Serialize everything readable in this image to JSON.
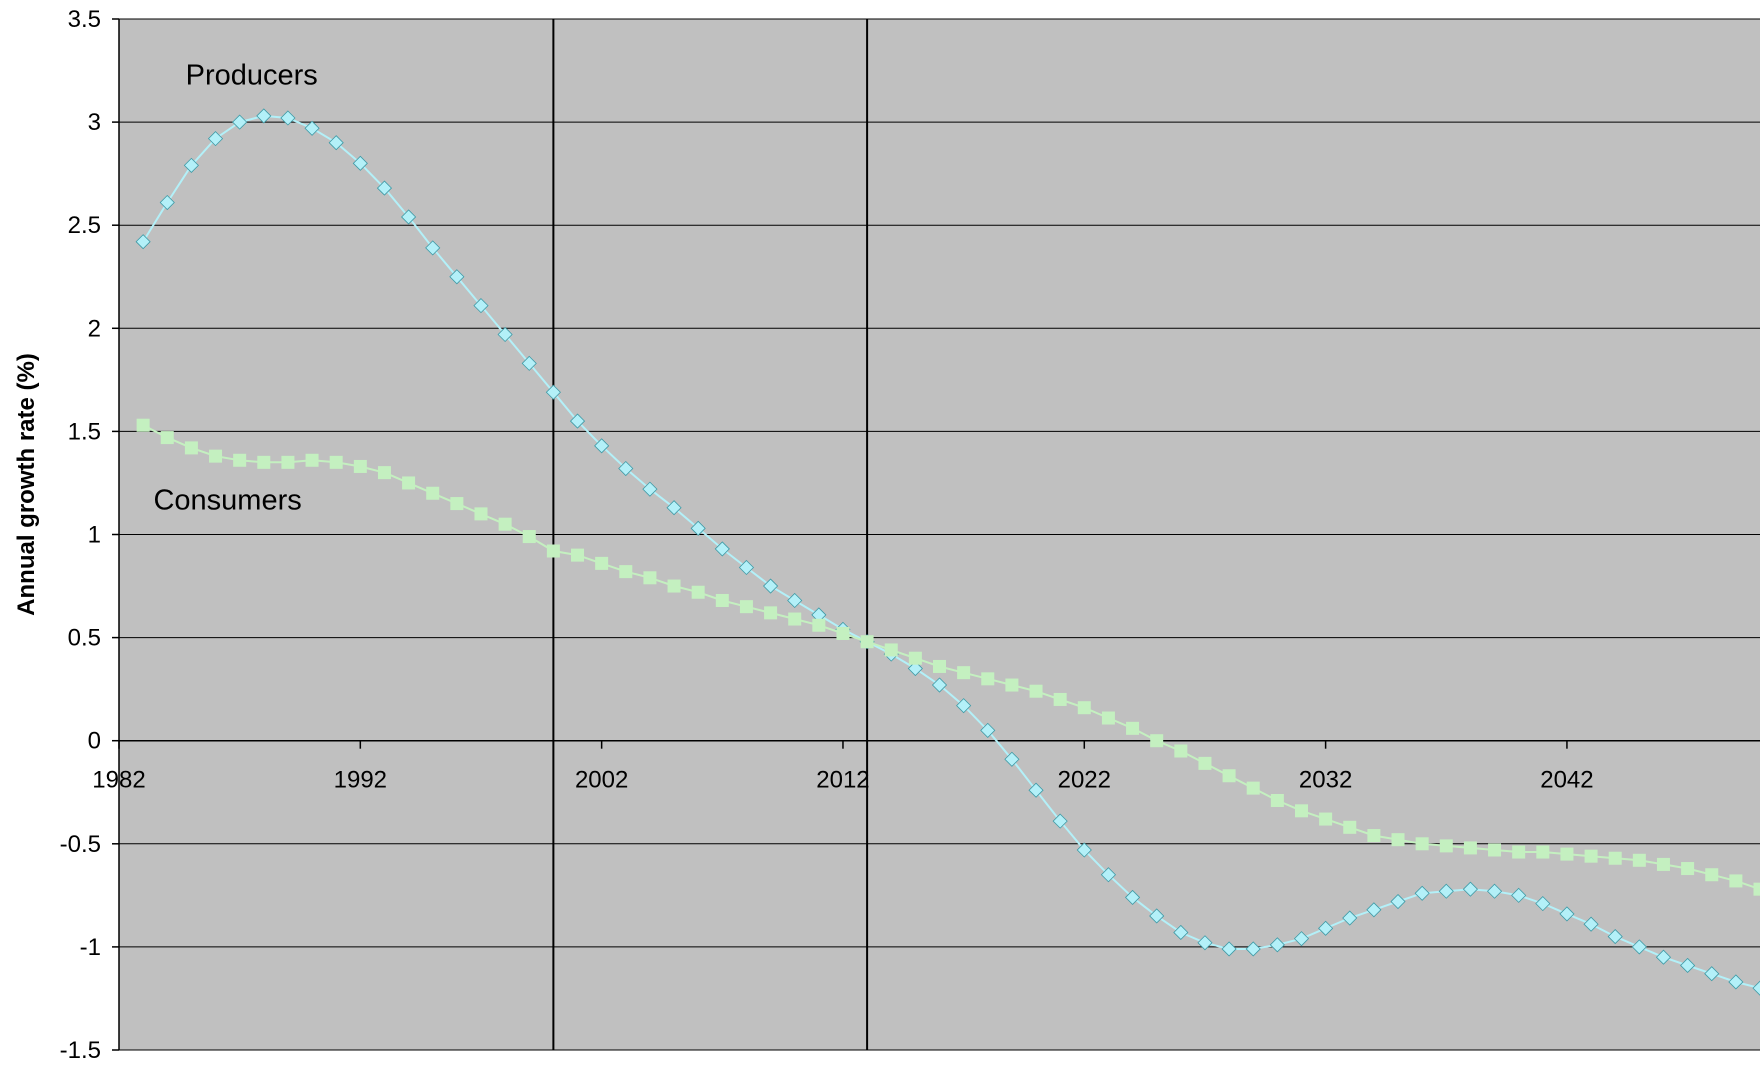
{
  "chart_data": {
    "type": "line",
    "title": "",
    "xlabel": "",
    "ylabel": "Annual growth rate (%)",
    "xlim": [
      1982,
      2050
    ],
    "ylim": [
      -1.5,
      3.5
    ],
    "xticks": [
      1982,
      1992,
      2002,
      2012,
      2022,
      2032,
      2042
    ],
    "yticks": [
      3.5,
      3,
      2.5,
      2,
      1.5,
      1,
      0.5,
      0,
      -0.5,
      -1,
      -1.5
    ],
    "ytick_labels": [
      "3.5",
      "3",
      "2.5",
      "2",
      "1.5",
      "1",
      "0.5",
      "0",
      "-0.5",
      "-1",
      "-1.5"
    ],
    "xtick_labels": [
      "1982",
      "1992",
      "2002",
      "2012",
      "2022",
      "2032",
      "2042"
    ],
    "grid": "horizontal",
    "plot_background": "#c0c0c0",
    "vertical_markers": [
      2000,
      2013
    ],
    "x": [
      1983,
      1984,
      1985,
      1986,
      1987,
      1988,
      1989,
      1990,
      1991,
      1992,
      1993,
      1994,
      1995,
      1996,
      1997,
      1998,
      1999,
      2000,
      2001,
      2002,
      2003,
      2004,
      2005,
      2006,
      2007,
      2008,
      2009,
      2010,
      2011,
      2012,
      2013,
      2014,
      2015,
      2016,
      2017,
      2018,
      2019,
      2020,
      2021,
      2022,
      2023,
      2024,
      2025,
      2026,
      2027,
      2028,
      2029,
      2030,
      2031,
      2032,
      2033,
      2034,
      2035,
      2036,
      2037,
      2038,
      2039,
      2040,
      2041,
      2042,
      2043,
      2044,
      2045,
      2046,
      2047,
      2048,
      2049,
      2050
    ],
    "series": [
      {
        "name": "Producers",
        "marker": "diamond",
        "color": "#b3f0f8",
        "values": [
          2.42,
          2.61,
          2.79,
          2.92,
          3.0,
          3.03,
          3.02,
          2.97,
          2.9,
          2.8,
          2.68,
          2.54,
          2.39,
          2.25,
          2.11,
          1.97,
          1.83,
          1.69,
          1.55,
          1.43,
          1.32,
          1.22,
          1.13,
          1.03,
          0.93,
          0.84,
          0.75,
          0.68,
          0.61,
          0.54,
          0.48,
          0.42,
          0.35,
          0.27,
          0.17,
          0.05,
          -0.09,
          -0.24,
          -0.39,
          -0.53,
          -0.65,
          -0.76,
          -0.85,
          -0.93,
          -0.98,
          -1.01,
          -1.01,
          -0.99,
          -0.96,
          -0.91,
          -0.86,
          -0.82,
          -0.78,
          -0.74,
          -0.73,
          -0.72,
          -0.73,
          -0.75,
          -0.79,
          -0.84,
          -0.89,
          -0.95,
          -1.0,
          -1.05,
          -1.09,
          -1.13,
          -1.17,
          -1.2
        ]
      },
      {
        "name": "Consumers",
        "marker": "square",
        "color": "#c4f0c0",
        "values": [
          1.53,
          1.47,
          1.42,
          1.38,
          1.36,
          1.35,
          1.35,
          1.36,
          1.35,
          1.33,
          1.3,
          1.25,
          1.2,
          1.15,
          1.1,
          1.05,
          0.99,
          0.92,
          0.9,
          0.86,
          0.82,
          0.79,
          0.75,
          0.72,
          0.68,
          0.65,
          0.62,
          0.59,
          0.56,
          0.52,
          0.48,
          0.44,
          0.4,
          0.36,
          0.33,
          0.3,
          0.27,
          0.24,
          0.2,
          0.16,
          0.11,
          0.06,
          0.0,
          -0.05,
          -0.11,
          -0.17,
          -0.23,
          -0.29,
          -0.34,
          -0.38,
          -0.42,
          -0.46,
          -0.48,
          -0.5,
          -0.51,
          -0.52,
          -0.53,
          -0.54,
          -0.54,
          -0.55,
          -0.56,
          -0.57,
          -0.58,
          -0.6,
          -0.62,
          -0.65,
          -0.68,
          -0.72
        ]
      }
    ],
    "annotations": [
      {
        "text": "Producers",
        "x": 1987.5,
        "y": 3.23
      },
      {
        "text": "Consumers",
        "x": 1986.5,
        "y": 1.17
      }
    ]
  }
}
